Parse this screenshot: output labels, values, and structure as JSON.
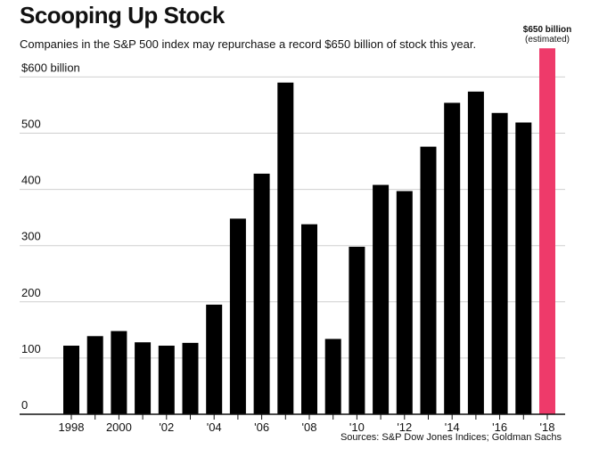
{
  "header": {
    "title": "Scooping Up Stock",
    "subtitle": "Companies in the S&P 500 index may repurchase a record $650 billion of stock this year."
  },
  "footer": {
    "sources": "Sources: S&P Dow Jones Indices; Goldman Sachs"
  },
  "colors": {
    "bar": "#000000",
    "highlight": "#ee3a6a",
    "grid": "#cfcfcf",
    "axis": "#111111"
  },
  "chart_data": {
    "type": "bar",
    "title": "Scooping Up Stock",
    "subtitle": "Companies in the S&P 500 index may repurchase a record $650 billion of stock this year.",
    "categories": [
      "1998",
      "1999",
      "2000",
      "2001",
      "2002",
      "2003",
      "2004",
      "2005",
      "2006",
      "2007",
      "2008",
      "2009",
      "2010",
      "2011",
      "2012",
      "2013",
      "2014",
      "2015",
      "2016",
      "2017",
      "2018"
    ],
    "values": [
      122,
      139,
      148,
      128,
      122,
      127,
      195,
      348,
      428,
      590,
      338,
      134,
      298,
      408,
      397,
      476,
      554,
      574,
      536,
      519,
      651
    ],
    "highlight_index": 20,
    "ylim": [
      0,
      650
    ],
    "yticks": [
      0,
      100,
      200,
      300,
      400,
      500,
      600
    ],
    "ytick_labels": [
      "0",
      "100",
      "200",
      "300",
      "400",
      "500",
      "$600 billion"
    ],
    "xtick_labels": [
      "1998",
      "",
      "2000",
      "",
      "'02",
      "",
      "'04",
      "",
      "'06",
      "",
      "'08",
      "",
      "'10",
      "",
      "'12",
      "",
      "'14",
      "",
      "'16",
      "",
      "'18"
    ],
    "annotation": {
      "line1": "$650 billion",
      "line2": "(estimated)"
    },
    "grid": true
  }
}
